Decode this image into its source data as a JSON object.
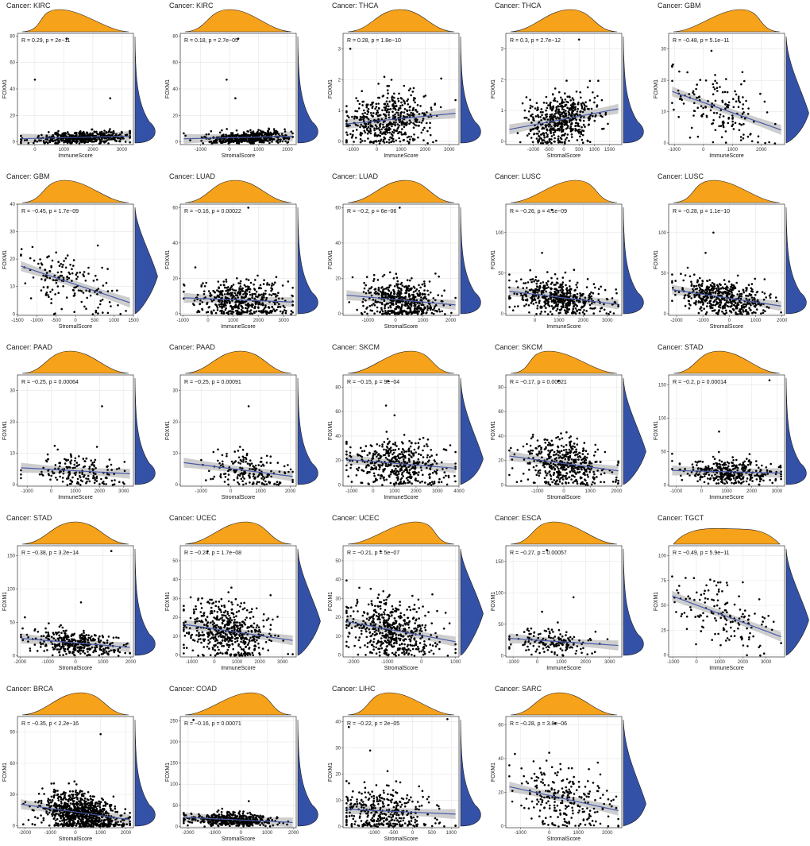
{
  "colors": {
    "top_density": "#F7A21B",
    "right_density": "#3451A8",
    "regression_line": "#4A5AA8",
    "confidence_band": "#BDBDBD",
    "points": "#000000",
    "grid": "#E6E6E6",
    "frame": "#333333"
  },
  "chart_data": [
    {
      "type": "scatter",
      "title": "Cancer: KIRC",
      "xlabel": "ImmuneScore",
      "ylabel": "FOXM1",
      "stat_label": "R = 0.29, p = 2e−11",
      "xlim": [
        -600,
        3400
      ],
      "ylim": [
        -2,
        82
      ],
      "xticks": [
        0,
        1000,
        2000,
        3000
      ],
      "yticks": [
        0,
        20,
        40,
        60,
        80
      ],
      "n_points": 500,
      "x_mean": 1700,
      "x_sd": 800,
      "y_mean": 3,
      "y_sd": 2.5,
      "r": 0.29,
      "outliers": [
        [
          1100,
          78
        ],
        [
          0,
          47
        ],
        [
          2600,
          33
        ]
      ],
      "top_density": "unimodal",
      "right_density": "skewed-low"
    },
    {
      "type": "scatter",
      "title": "Cancer: KIRC",
      "xlabel": "StromalScore",
      "ylabel": "FOXM1",
      "stat_label": "R = 0.18, p = 2.7e−05",
      "xlim": [
        -1700,
        2300
      ],
      "ylim": [
        -2,
        82
      ],
      "xticks": [
        -1000,
        0,
        1000,
        2000
      ],
      "yticks": [
        0,
        20,
        40,
        60,
        80
      ],
      "n_points": 500,
      "x_mean": 600,
      "x_sd": 700,
      "y_mean": 3,
      "y_sd": 2.5,
      "r": 0.18,
      "outliers": [
        [
          300,
          78
        ],
        [
          -100,
          47
        ],
        [
          200,
          33
        ]
      ],
      "top_density": "unimodal",
      "right_density": "skewed-low"
    },
    {
      "type": "scatter",
      "title": "Cancer: THCA",
      "xlabel": "ImmuneScore",
      "ylabel": "FOXM1",
      "stat_label": "R = 0.28, p = 1.8e−10",
      "xlim": [
        -1400,
        3400
      ],
      "ylim": [
        -0.1,
        3.5
      ],
      "xticks": [
        -1000,
        0,
        1000,
        2000,
        3000
      ],
      "yticks": [
        0,
        1,
        2,
        3
      ],
      "n_points": 500,
      "x_mean": 500,
      "x_sd": 900,
      "y_mean": 0.7,
      "y_sd": 0.45,
      "r": 0.28,
      "outliers": [
        [
          -1100,
          3.0
        ]
      ],
      "top_density": "unimodal",
      "right_density": "skewed-low"
    },
    {
      "type": "scatter",
      "title": "Cancer: THCA",
      "xlabel": "StromalScore",
      "ylabel": "FOXM1",
      "stat_label": "R = 0.3, p = 2.7e−12",
      "xlim": [
        -1900,
        1900
      ],
      "ylim": [
        -0.1,
        3.5
      ],
      "xticks": [
        -1000,
        -500,
        0,
        500,
        1000,
        1500
      ],
      "yticks": [
        0,
        1,
        2,
        3
      ],
      "n_points": 500,
      "x_mean": -100,
      "x_sd": 600,
      "y_mean": 0.7,
      "y_sd": 0.45,
      "r": 0.3,
      "outliers": [
        [
          500,
          3.3
        ]
      ],
      "top_density": "unimodal",
      "right_density": "skewed-low"
    },
    {
      "type": "scatter",
      "title": "Cancer: GBM",
      "xlabel": "ImmuneScore",
      "ylabel": "FOXM1",
      "stat_label": "R = −0.48, p = 5.1e−11",
      "xlim": [
        -1200,
        2800
      ],
      "ylim": [
        -0.5,
        35
      ],
      "xticks": [
        -1000,
        0,
        1000,
        2000
      ],
      "yticks": [
        0,
        10,
        20,
        30
      ],
      "n_points": 160,
      "x_mean": 600,
      "x_sd": 800,
      "y_mean": 11,
      "y_sd": 6,
      "r": -0.48,
      "outliers": [],
      "top_density": "unimodal",
      "right_density": "unimodal"
    },
    {
      "type": "scatter",
      "title": "Cancer: GBM",
      "xlabel": "StromalScore",
      "ylabel": "FOXM1",
      "stat_label": "R = −0.45, p = 1.7e−09",
      "xlim": [
        -1500,
        1500
      ],
      "ylim": [
        -0.5,
        40
      ],
      "xticks": [
        -1500,
        -1000,
        -500,
        0,
        500,
        1000,
        1500
      ],
      "yticks": [
        0,
        10,
        20,
        30,
        40
      ],
      "n_points": 160,
      "x_mean": -100,
      "x_sd": 600,
      "y_mean": 11,
      "y_sd": 6,
      "r": -0.45,
      "outliers": [],
      "top_density": "unimodal",
      "right_density": "unimodal"
    },
    {
      "type": "scatter",
      "title": "Cancer: LUAD",
      "xlabel": "ImmuneScore",
      "ylabel": "FOXM1",
      "stat_label": "R = −0.16, p = 0.00022",
      "xlim": [
        -1100,
        3500
      ],
      "ylim": [
        -1,
        62
      ],
      "xticks": [
        -1000,
        0,
        1000,
        2000,
        3000
      ],
      "yticks": [
        0,
        20,
        40,
        60
      ],
      "n_points": 500,
      "x_mean": 1300,
      "x_sd": 900,
      "y_mean": 7,
      "y_sd": 6,
      "r": -0.16,
      "outliers": [
        [
          1600,
          60
        ]
      ],
      "top_density": "unimodal",
      "right_density": "skewed-low"
    },
    {
      "type": "scatter",
      "title": "Cancer: LUAD",
      "xlabel": "StromalScore",
      "ylabel": "FOXM1",
      "stat_label": "R = −0.2, p = 6e−06",
      "xlim": [
        -1900,
        2300
      ],
      "ylim": [
        -1,
        62
      ],
      "xticks": [
        -1000,
        0,
        1000,
        2000
      ],
      "yticks": [
        0,
        20,
        40,
        60
      ],
      "n_points": 500,
      "x_mean": 200,
      "x_sd": 700,
      "y_mean": 7,
      "y_sd": 6,
      "r": -0.2,
      "outliers": [
        [
          150,
          60
        ]
      ],
      "top_density": "unimodal",
      "right_density": "skewed-low"
    },
    {
      "type": "scatter",
      "title": "Cancer: LUSC",
      "xlabel": "ImmuneScore",
      "ylabel": "FOXM1",
      "stat_label": "R = −0.26, p = 4.1e−09",
      "xlim": [
        -1200,
        3600
      ],
      "ylim": [
        -2,
        135
      ],
      "xticks": [
        0,
        1000,
        2000,
        3000
      ],
      "yticks": [
        0,
        50,
        100
      ],
      "n_points": 500,
      "x_mean": 1000,
      "x_sd": 900,
      "y_mean": 20,
      "y_sd": 11,
      "r": -0.26,
      "outliers": [
        [
          700,
          128
        ],
        [
          300,
          75
        ]
      ],
      "top_density": "unimodal",
      "right_density": "skewed-low"
    },
    {
      "type": "scatter",
      "title": "Cancer: LUSC",
      "xlabel": "StromalScore",
      "ylabel": "FOXM1",
      "stat_label": "R = −0.28, p = 1.1e−10",
      "xlim": [
        -2300,
        2100
      ],
      "ylim": [
        -2,
        135
      ],
      "xticks": [
        -2000,
        -1000,
        0,
        1000,
        2000
      ],
      "yticks": [
        0,
        50,
        100
      ],
      "n_points": 500,
      "x_mean": -200,
      "x_sd": 800,
      "y_mean": 20,
      "y_sd": 11,
      "r": -0.28,
      "outliers": [
        [
          -600,
          100
        ],
        [
          -900,
          75
        ]
      ],
      "top_density": "unimodal",
      "right_density": "skewed-low"
    },
    {
      "type": "scatter",
      "title": "Cancer: PAAD",
      "xlabel": "ImmuneScore",
      "ylabel": "FOXM1",
      "stat_label": "R = −0.25, p = 0.00064",
      "xlim": [
        -1400,
        3400
      ],
      "ylim": [
        -0.5,
        35
      ],
      "xticks": [
        -1000,
        0,
        1000,
        2000,
        3000
      ],
      "yticks": [
        0,
        10,
        20,
        30
      ],
      "n_points": 180,
      "x_mean": 1100,
      "x_sd": 900,
      "y_mean": 4,
      "y_sd": 3,
      "r": -0.25,
      "outliers": [
        [
          2100,
          25
        ]
      ],
      "top_density": "unimodal",
      "right_density": "skewed-low"
    },
    {
      "type": "scatter",
      "title": "Cancer: PAAD",
      "xlabel": "StromalScore",
      "ylabel": "FOXM1",
      "stat_label": "R = −0.25, p = 0.00091",
      "xlim": [
        -1700,
        2200
      ],
      "ylim": [
        -0.5,
        35
      ],
      "xticks": [
        -1000,
        0,
        1000,
        2000
      ],
      "yticks": [
        0,
        10,
        20,
        30
      ],
      "n_points": 180,
      "x_mean": 600,
      "x_sd": 700,
      "y_mean": 4,
      "y_sd": 3,
      "r": -0.25,
      "outliers": [
        [
          600,
          25
        ]
      ],
      "top_density": "unimodal",
      "right_density": "skewed-low"
    },
    {
      "type": "scatter",
      "title": "Cancer: SKCM",
      "xlabel": "ImmuneScore",
      "ylabel": "FOXM1",
      "stat_label": "R = −0.15, p = 9e−04",
      "xlim": [
        -1400,
        4000
      ],
      "ylim": [
        -1,
        90
      ],
      "xticks": [
        -1000,
        0,
        1000,
        2000,
        3000,
        4000
      ],
      "yticks": [
        0,
        20,
        40,
        60,
        80
      ],
      "n_points": 470,
      "x_mean": 1200,
      "x_sd": 1100,
      "y_mean": 17,
      "y_sd": 10,
      "r": -0.15,
      "outliers": [
        [
          700,
          85
        ],
        [
          600,
          65
        ]
      ],
      "top_density": "unimodal",
      "right_density": "unimodal"
    },
    {
      "type": "scatter",
      "title": "Cancer: SKCM",
      "xlabel": "StromalScore",
      "ylabel": "FOXM1",
      "stat_label": "R = −0.17, p = 0.00021",
      "xlim": [
        -2200,
        2200
      ],
      "ylim": [
        -1,
        90
      ],
      "xticks": [
        -1000,
        0,
        1000,
        2000
      ],
      "yticks": [
        0,
        20,
        40,
        60,
        80
      ],
      "n_points": 470,
      "x_mean": 0,
      "x_sd": 800,
      "y_mean": 17,
      "y_sd": 10,
      "r": -0.17,
      "outliers": [
        [
          -200,
          85
        ]
      ],
      "top_density": "unimodal",
      "right_density": "unimodal"
    },
    {
      "type": "scatter",
      "title": "Cancer: STAD",
      "xlabel": "ImmuneScore",
      "ylabel": "FOXM1",
      "stat_label": "R = −0.2, p = 0.00014",
      "xlim": [
        -1300,
        3300
      ],
      "ylim": [
        -2,
        165
      ],
      "xticks": [
        -1000,
        0,
        1000,
        2000,
        3000
      ],
      "yticks": [
        0,
        50,
        100,
        150
      ],
      "n_points": 370,
      "x_mean": 1100,
      "x_sd": 900,
      "y_mean": 18,
      "y_sd": 10,
      "r": -0.2,
      "outliers": [
        [
          2700,
          157
        ],
        [
          700,
          80
        ]
      ],
      "top_density": "unimodal",
      "right_density": "skewed-low"
    },
    {
      "type": "scatter",
      "title": "Cancer: STAD",
      "xlabel": "StromalScore",
      "ylabel": "FOXM1",
      "stat_label": "R = −0.38, p = 3.2e−14",
      "xlim": [
        -2100,
        2100
      ],
      "ylim": [
        -2,
        165
      ],
      "xticks": [
        -2000,
        -1000,
        0,
        1000,
        2000
      ],
      "yticks": [
        0,
        50,
        100,
        150
      ],
      "n_points": 370,
      "x_mean": 0,
      "x_sd": 800,
      "y_mean": 18,
      "y_sd": 10,
      "r": -0.38,
      "outliers": [
        [
          1300,
          157
        ],
        [
          200,
          80
        ]
      ],
      "top_density": "unimodal",
      "right_density": "skewed-low"
    },
    {
      "type": "scatter",
      "title": "Cancer: UCEC",
      "xlabel": "ImmuneScore",
      "ylabel": "FOXM1",
      "stat_label": "R = −0.24, p = 1.7e−08",
      "xlim": [
        -1500,
        3600
      ],
      "ylim": [
        -1,
        58
      ],
      "xticks": [
        -1000,
        0,
        1000,
        2000,
        3000
      ],
      "yticks": [
        0,
        10,
        20,
        30,
        40,
        50
      ],
      "n_points": 540,
      "x_mean": 500,
      "x_sd": 900,
      "y_mean": 13,
      "y_sd": 8,
      "r": -0.24,
      "outliers": [
        [
          -300,
          55
        ]
      ],
      "top_density": "unimodal",
      "right_density": "unimodal"
    },
    {
      "type": "scatter",
      "title": "Cancer: UCEC",
      "xlabel": "StromalScore",
      "ylabel": "FOXM1",
      "stat_label": "R = −0.21, p = 5e−07",
      "xlim": [
        -2300,
        1100
      ],
      "ylim": [
        -1,
        58
      ],
      "xticks": [
        -2000,
        -1000,
        0,
        1000
      ],
      "yticks": [
        0,
        10,
        20,
        30,
        40,
        50
      ],
      "n_points": 540,
      "x_mean": -900,
      "x_sd": 650,
      "y_mean": 13,
      "y_sd": 8,
      "r": -0.21,
      "outliers": [
        [
          -1200,
          55
        ]
      ],
      "top_density": "unimodal",
      "right_density": "unimodal"
    },
    {
      "type": "scatter",
      "title": "Cancer: ESCA",
      "xlabel": "ImmuneScore",
      "ylabel": "FOXM1",
      "stat_label": "R = −0.27, p = 0.00057",
      "xlim": [
        -1300,
        3500
      ],
      "ylim": [
        -2,
        175
      ],
      "xticks": [
        -1000,
        0,
        1000,
        2000,
        3000
      ],
      "yticks": [
        0,
        50,
        100,
        150
      ],
      "n_points": 160,
      "x_mean": 700,
      "x_sd": 900,
      "y_mean": 22,
      "y_sd": 11,
      "r": -0.27,
      "outliers": [
        [
          400,
          168
        ],
        [
          1500,
          93
        ],
        [
          200,
          70
        ]
      ],
      "top_density": "unimodal",
      "right_density": "skewed-low"
    },
    {
      "type": "scatter",
      "title": "Cancer: TGCT",
      "xlabel": "ImmuneScore",
      "ylabel": "FOXM1",
      "stat_label": "R = −0.49, p = 5.9e−11",
      "xlim": [
        -1200,
        3800
      ],
      "ylim": [
        -2,
        110
      ],
      "xticks": [
        -1000,
        0,
        1000,
        2000,
        3000
      ],
      "yticks": [
        0,
        25,
        50,
        75,
        100
      ],
      "n_points": 150,
      "x_mean": 1300,
      "x_sd": 1100,
      "y_mean": 40,
      "y_sd": 20,
      "r": -0.49,
      "outliers": [],
      "top_density": "flat",
      "right_density": "unimodal"
    },
    {
      "type": "scatter",
      "title": "Cancer: BRCA",
      "xlabel": "StromalScore",
      "ylabel": "FOXM1",
      "stat_label": "R = −0.35, p < 2.2e−16",
      "xlim": [
        -2300,
        2300
      ],
      "ylim": [
        -2,
        105
      ],
      "xticks": [
        -2000,
        -1000,
        0,
        1000,
        2000
      ],
      "yticks": [
        0,
        30,
        60,
        90
      ],
      "n_points": 900,
      "x_mean": 200,
      "x_sd": 800,
      "y_mean": 12,
      "y_sd": 10,
      "r": -0.35,
      "outliers": [
        [
          1000,
          88
        ]
      ],
      "top_density": "unimodal",
      "right_density": "skewed-low"
    },
    {
      "type": "scatter",
      "title": "Cancer: COAD",
      "xlabel": "StromalScore",
      "ylabel": "FOXM1",
      "stat_label": "R = −0.16, p = 0.00071",
      "xlim": [
        -2300,
        2100
      ],
      "ylim": [
        -3,
        260
      ],
      "xticks": [
        -2000,
        -1000,
        0,
        1000,
        2000
      ],
      "yticks": [
        0,
        50,
        100,
        150,
        200,
        250
      ],
      "n_points": 450,
      "x_mean": -300,
      "x_sd": 800,
      "y_mean": 15,
      "y_sd": 8,
      "r": -0.16,
      "outliers": [
        [
          -1800,
          252
        ],
        [
          300,
          60
        ]
      ],
      "top_density": "unimodal",
      "right_density": "skewed-low"
    },
    {
      "type": "scatter",
      "title": "Cancer: LIHC",
      "xlabel": "StromalScore",
      "ylabel": "FOXM1",
      "stat_label": "R = −0.22, p = 2e−05",
      "xlim": [
        -1800,
        1200
      ],
      "ylim": [
        -0.5,
        42
      ],
      "xticks": [
        -1000,
        -500,
        0,
        500,
        1000
      ],
      "yticks": [
        0,
        10,
        20,
        30,
        40
      ],
      "n_points": 370,
      "x_mean": -700,
      "x_sd": 600,
      "y_mean": 5,
      "y_sd": 5,
      "r": -0.22,
      "outliers": [
        [
          900,
          41
        ],
        [
          -1100,
          29
        ],
        [
          -1650,
          38
        ]
      ],
      "top_density": "unimodal",
      "right_density": "skewed-low"
    },
    {
      "type": "scatter",
      "title": "Cancer: SARC",
      "xlabel": "StromalScore",
      "ylabel": "FOXM1",
      "stat_label": "R = −0.28, p = 3.8e−06",
      "xlim": [
        -1500,
        2500
      ],
      "ylim": [
        -1,
        65
      ],
      "xticks": [
        -1000,
        0,
        1000,
        2000
      ],
      "yticks": [
        0,
        20,
        40,
        60
      ],
      "n_points": 260,
      "x_mean": 600,
      "x_sd": 800,
      "y_mean": 15,
      "y_sd": 10,
      "r": -0.28,
      "outliers": [
        [
          200,
          61
        ]
      ],
      "top_density": "unimodal",
      "right_density": "unimodal"
    }
  ]
}
